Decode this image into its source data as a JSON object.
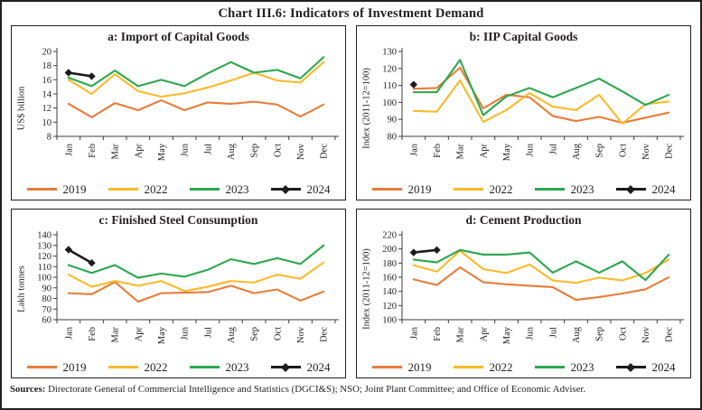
{
  "title": "Chart III.6: Indicators of Investment Demand",
  "sources_label": "Sources:",
  "sources_text": " Directorate General of Commercial Intelligence and Statistics (DGCI&S); NSO; Joint Plant Committee; and Office of Economic Adviser.",
  "axis_color": "#3d3d3d",
  "chart_data": [
    {
      "type": "line",
      "title": "a: Import of Capital Goods",
      "ylabel": "US$ billion",
      "ylim": [
        8,
        20
      ],
      "ystep": 2,
      "grid": false,
      "legend_position": "bottom",
      "categories": [
        "Jan",
        "Feb",
        "Mar",
        "Apr",
        "May",
        "Jun",
        "Jul",
        "Aug",
        "Sep",
        "Oct",
        "Nov",
        "Dec"
      ],
      "series": [
        {
          "name": "2019",
          "color": "#E97C3A",
          "values": [
            12.6,
            10.7,
            12.7,
            11.7,
            13.1,
            11.7,
            12.8,
            12.6,
            12.9,
            12.5,
            10.8,
            12.5
          ]
        },
        {
          "name": "2022",
          "color": "#FCBA29",
          "values": [
            16.0,
            14.0,
            16.8,
            14.4,
            13.6,
            14.1,
            14.9,
            15.9,
            17.0,
            15.9,
            15.6,
            18.5
          ]
        },
        {
          "name": "2023",
          "color": "#2BA84E",
          "values": [
            16.3,
            15.1,
            17.3,
            15.1,
            16.0,
            15.1,
            16.9,
            18.5,
            17.0,
            17.4,
            16.2,
            19.2
          ]
        },
        {
          "name": "2024",
          "color": "#1c1c1c",
          "marker": "diamond",
          "values": [
            17.0,
            16.5
          ]
        }
      ]
    },
    {
      "type": "line",
      "title": "b: IIP Capital Goods",
      "ylabel": "Index (2011-12=100)",
      "ylim": [
        80,
        130
      ],
      "ystep": 10,
      "grid": false,
      "legend_position": "bottom",
      "categories": [
        "Jan",
        "Feb",
        "Mar",
        "Apr",
        "May",
        "Jun",
        "Jul",
        "Aug",
        "Sep",
        "Oct",
        "Nov",
        "Dec"
      ],
      "series": [
        {
          "name": "2019",
          "color": "#E97C3A",
          "values": [
            108,
            108.5,
            120.5,
            96.5,
            104.5,
            103,
            92,
            89,
            91.5,
            88,
            91,
            94
          ]
        },
        {
          "name": "2022",
          "color": "#FCBA29",
          "values": [
            95,
            94.5,
            113,
            88.5,
            95.5,
            105.5,
            97.5,
            95.5,
            104.5,
            87.5,
            99,
            100.5
          ]
        },
        {
          "name": "2023",
          "color": "#2BA84E",
          "values": [
            106,
            106,
            125,
            92.5,
            103.5,
            108.5,
            103,
            108.5,
            114,
            106.5,
            98.5,
            104.5
          ]
        },
        {
          "name": "2024",
          "color": "#1c1c1c",
          "marker": "diamond",
          "values": [
            110.5
          ]
        }
      ]
    },
    {
      "type": "line",
      "title": "c: Finished Steel Consumption",
      "ylabel": "Lakh tonnes",
      "ylim": [
        60,
        140
      ],
      "ystep": 10,
      "grid": false,
      "legend_position": "bottom",
      "categories": [
        "Jan",
        "Feb",
        "Mar",
        "Apr",
        "May",
        "Jun",
        "Jul",
        "Aug",
        "Sep",
        "Oct",
        "Nov",
        "Dec"
      ],
      "series": [
        {
          "name": "2019",
          "color": "#E97C3A",
          "values": [
            85,
            84,
            95.5,
            77,
            85,
            85.5,
            86,
            92,
            85,
            88.5,
            78,
            86.5
          ]
        },
        {
          "name": "2022",
          "color": "#FCBA29",
          "values": [
            102.5,
            91,
            96.5,
            92,
            96.5,
            87,
            91,
            96.5,
            95,
            102.5,
            98.5,
            114
          ]
        },
        {
          "name": "2023",
          "color": "#2BA84E",
          "values": [
            111.5,
            104,
            111.5,
            99.5,
            103.5,
            100.5,
            107,
            117,
            112.5,
            118,
            112.5,
            130
          ]
        },
        {
          "name": "2024",
          "color": "#1c1c1c",
          "marker": "diamond",
          "values": [
            126,
            113.5
          ]
        }
      ]
    },
    {
      "type": "line",
      "title": "d: Cement Production",
      "ylabel": "Index (2011-12=100)",
      "ylim": [
        100,
        220
      ],
      "ystep": 20,
      "grid": false,
      "legend_position": "bottom",
      "categories": [
        "Jan",
        "Feb",
        "Mar",
        "Apr",
        "May",
        "Jun",
        "Jul",
        "Aug",
        "Sep",
        "Oct",
        "Nov",
        "Dec"
      ],
      "series": [
        {
          "name": "2019",
          "color": "#E97C3A",
          "values": [
            157,
            149,
            174,
            153,
            150,
            148,
            146,
            128,
            132,
            137,
            143,
            160
          ]
        },
        {
          "name": "2022",
          "color": "#FCBA29",
          "values": [
            177,
            168,
            197.5,
            171.5,
            166,
            178,
            155.5,
            152,
            159.5,
            155.5,
            166,
            185
          ]
        },
        {
          "name": "2023",
          "color": "#2BA84E",
          "values": [
            185,
            181,
            198.5,
            192,
            192,
            195,
            166.5,
            182.5,
            166.5,
            182.5,
            156,
            192
          ]
        },
        {
          "name": "2024",
          "color": "#1c1c1c",
          "marker": "diamond",
          "values": [
            195,
            198.5
          ]
        }
      ]
    }
  ]
}
